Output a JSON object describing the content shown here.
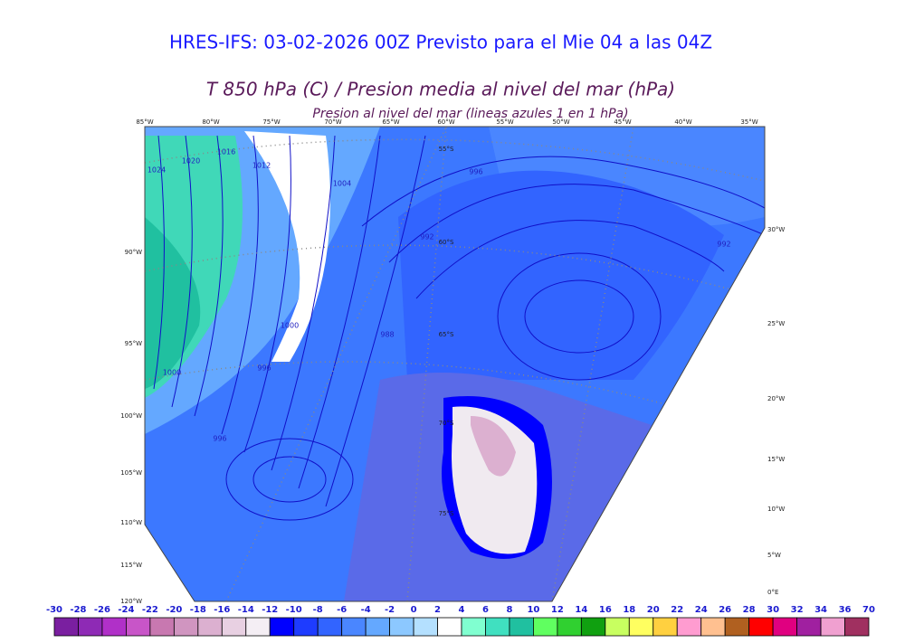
{
  "header": {
    "title": "HRES-IFS: 03-02-2026 00Z Previsto para el Mie 04 a las 04Z",
    "subtitle": "T 850 hPa (C) / Presion media al nivel del mar (hPa)",
    "caption": "Presion al nivel del mar (lineas azules 1 en 1 hPa)"
  },
  "map": {
    "top_labels": [
      "85°W",
      "80°W",
      "75°W",
      "70°W",
      "65°W",
      "60°W",
      "55°W",
      "50°W",
      "45°W",
      "40°W",
      "35°W"
    ],
    "left_labels": [
      "90°W",
      "95°W",
      "100°W",
      "105°W",
      "110°W",
      "115°W",
      "120°W"
    ],
    "right_labels": [
      "30°W",
      "25°W",
      "20°W",
      "15°W",
      "10°W",
      "5°W",
      "0°E"
    ],
    "lat_labels": [
      "55°S",
      "60°S",
      "65°S",
      "70°S",
      "75°S"
    ],
    "isobar_labels": [
      "1024",
      "1020",
      "1016",
      "1012",
      "1004",
      "996",
      "992",
      "988",
      "992",
      "996",
      "1000",
      "1000",
      "996"
    ]
  },
  "colorbar": {
    "ticks": [
      -30,
      -28,
      -26,
      -24,
      -22,
      -20,
      -18,
      -16,
      -14,
      -12,
      -10,
      -8,
      -6,
      -4,
      -2,
      0,
      2,
      4,
      6,
      8,
      10,
      12,
      14,
      16,
      18,
      20,
      22,
      24,
      26,
      28,
      30,
      32,
      34,
      36,
      70
    ],
    "colors": [
      "#7a1fa0",
      "#8e2ab5",
      "#b030c8",
      "#c855c8",
      "#c878b0",
      "#d095c0",
      "#dcb0d0",
      "#e8d0e2",
      "#f4eef4",
      "#0000ff",
      "#1e3cff",
      "#3264ff",
      "#4a86ff",
      "#64a8ff",
      "#8cc8ff",
      "#b4e0ff",
      "#ffffff",
      "#80ffd0",
      "#40e0c0",
      "#20c0a0",
      "#60ff60",
      "#30d030",
      "#10a010",
      "#c8ff60",
      "#ffff60",
      "#ffd040",
      "#ff9cd0",
      "#ffc090",
      "#b06020",
      "#ff0000",
      "#e00080",
      "#a020a0",
      "#f0a0d0",
      "#a03060",
      "#000000"
    ]
  }
}
